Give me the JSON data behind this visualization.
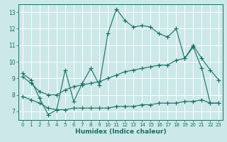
{
  "xlabel": "Humidex (Indice chaleur)",
  "ylabel": "",
  "xlim": [
    -0.5,
    23.5
  ],
  "ylim": [
    6.5,
    13.5
  ],
  "xticks": [
    0,
    1,
    2,
    3,
    4,
    5,
    6,
    7,
    8,
    9,
    10,
    11,
    12,
    13,
    14,
    15,
    16,
    17,
    18,
    19,
    20,
    21,
    22,
    23
  ],
  "yticks": [
    7,
    8,
    9,
    10,
    11,
    12,
    13
  ],
  "background_color": "#cce8e8",
  "grid_color": "#ffffff",
  "line_color": "#1a6e62",
  "line1_x": [
    0,
    1,
    2,
    3,
    4,
    5,
    6,
    7,
    8,
    9,
    10,
    11,
    12,
    13,
    14,
    15,
    16,
    17,
    18,
    19,
    20,
    21,
    22,
    23
  ],
  "line1_y": [
    9.3,
    8.9,
    7.8,
    6.8,
    7.1,
    9.5,
    7.6,
    8.7,
    9.6,
    8.6,
    11.7,
    13.2,
    12.5,
    12.1,
    12.2,
    12.1,
    11.7,
    11.5,
    12.0,
    10.2,
    10.9,
    9.6,
    7.5,
    7.5
  ],
  "line2_x": [
    0,
    1,
    2,
    3,
    4,
    5,
    6,
    7,
    8,
    9,
    10,
    11,
    12,
    13,
    14,
    15,
    16,
    17,
    18,
    19,
    20,
    21,
    22,
    23
  ],
  "line2_y": [
    9.1,
    8.7,
    8.2,
    8.0,
    8.0,
    8.3,
    8.5,
    8.6,
    8.7,
    8.8,
    9.0,
    9.2,
    9.4,
    9.5,
    9.6,
    9.7,
    9.8,
    9.8,
    10.1,
    10.2,
    11.0,
    10.2,
    9.5,
    8.9
  ],
  "line3_x": [
    0,
    1,
    2,
    3,
    4,
    5,
    6,
    7,
    8,
    9,
    10,
    11,
    12,
    13,
    14,
    15,
    16,
    17,
    18,
    19,
    20,
    21,
    22,
    23
  ],
  "line3_y": [
    7.9,
    7.7,
    7.5,
    7.2,
    7.1,
    7.1,
    7.2,
    7.2,
    7.2,
    7.2,
    7.2,
    7.3,
    7.3,
    7.3,
    7.4,
    7.4,
    7.5,
    7.5,
    7.5,
    7.6,
    7.6,
    7.7,
    7.5,
    7.5
  ]
}
